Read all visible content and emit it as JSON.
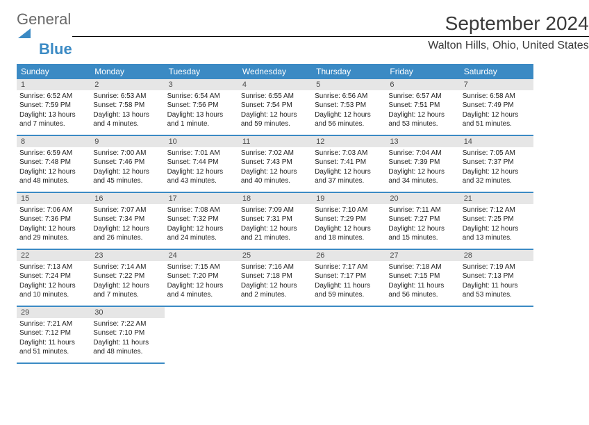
{
  "logo": {
    "general": "General",
    "blue": "Blue"
  },
  "title": "September 2024",
  "location": "Walton Hills, Ohio, United States",
  "colors": {
    "header_bg": "#3b8ac4",
    "header_fg": "#ffffff",
    "daynum_bg": "#e6e6e6",
    "body_bg": "#ffffff",
    "border": "#3b8ac4"
  },
  "weekdays": [
    "Sunday",
    "Monday",
    "Tuesday",
    "Wednesday",
    "Thursday",
    "Friday",
    "Saturday"
  ],
  "weeks": [
    [
      {
        "n": "1",
        "sr": "Sunrise: 6:52 AM",
        "ss": "Sunset: 7:59 PM",
        "dl": "Daylight: 13 hours and 7 minutes."
      },
      {
        "n": "2",
        "sr": "Sunrise: 6:53 AM",
        "ss": "Sunset: 7:58 PM",
        "dl": "Daylight: 13 hours and 4 minutes."
      },
      {
        "n": "3",
        "sr": "Sunrise: 6:54 AM",
        "ss": "Sunset: 7:56 PM",
        "dl": "Daylight: 13 hours and 1 minute."
      },
      {
        "n": "4",
        "sr": "Sunrise: 6:55 AM",
        "ss": "Sunset: 7:54 PM",
        "dl": "Daylight: 12 hours and 59 minutes."
      },
      {
        "n": "5",
        "sr": "Sunrise: 6:56 AM",
        "ss": "Sunset: 7:53 PM",
        "dl": "Daylight: 12 hours and 56 minutes."
      },
      {
        "n": "6",
        "sr": "Sunrise: 6:57 AM",
        "ss": "Sunset: 7:51 PM",
        "dl": "Daylight: 12 hours and 53 minutes."
      },
      {
        "n": "7",
        "sr": "Sunrise: 6:58 AM",
        "ss": "Sunset: 7:49 PM",
        "dl": "Daylight: 12 hours and 51 minutes."
      }
    ],
    [
      {
        "n": "8",
        "sr": "Sunrise: 6:59 AM",
        "ss": "Sunset: 7:48 PM",
        "dl": "Daylight: 12 hours and 48 minutes."
      },
      {
        "n": "9",
        "sr": "Sunrise: 7:00 AM",
        "ss": "Sunset: 7:46 PM",
        "dl": "Daylight: 12 hours and 45 minutes."
      },
      {
        "n": "10",
        "sr": "Sunrise: 7:01 AM",
        "ss": "Sunset: 7:44 PM",
        "dl": "Daylight: 12 hours and 43 minutes."
      },
      {
        "n": "11",
        "sr": "Sunrise: 7:02 AM",
        "ss": "Sunset: 7:43 PM",
        "dl": "Daylight: 12 hours and 40 minutes."
      },
      {
        "n": "12",
        "sr": "Sunrise: 7:03 AM",
        "ss": "Sunset: 7:41 PM",
        "dl": "Daylight: 12 hours and 37 minutes."
      },
      {
        "n": "13",
        "sr": "Sunrise: 7:04 AM",
        "ss": "Sunset: 7:39 PM",
        "dl": "Daylight: 12 hours and 34 minutes."
      },
      {
        "n": "14",
        "sr": "Sunrise: 7:05 AM",
        "ss": "Sunset: 7:37 PM",
        "dl": "Daylight: 12 hours and 32 minutes."
      }
    ],
    [
      {
        "n": "15",
        "sr": "Sunrise: 7:06 AM",
        "ss": "Sunset: 7:36 PM",
        "dl": "Daylight: 12 hours and 29 minutes."
      },
      {
        "n": "16",
        "sr": "Sunrise: 7:07 AM",
        "ss": "Sunset: 7:34 PM",
        "dl": "Daylight: 12 hours and 26 minutes."
      },
      {
        "n": "17",
        "sr": "Sunrise: 7:08 AM",
        "ss": "Sunset: 7:32 PM",
        "dl": "Daylight: 12 hours and 24 minutes."
      },
      {
        "n": "18",
        "sr": "Sunrise: 7:09 AM",
        "ss": "Sunset: 7:31 PM",
        "dl": "Daylight: 12 hours and 21 minutes."
      },
      {
        "n": "19",
        "sr": "Sunrise: 7:10 AM",
        "ss": "Sunset: 7:29 PM",
        "dl": "Daylight: 12 hours and 18 minutes."
      },
      {
        "n": "20",
        "sr": "Sunrise: 7:11 AM",
        "ss": "Sunset: 7:27 PM",
        "dl": "Daylight: 12 hours and 15 minutes."
      },
      {
        "n": "21",
        "sr": "Sunrise: 7:12 AM",
        "ss": "Sunset: 7:25 PM",
        "dl": "Daylight: 12 hours and 13 minutes."
      }
    ],
    [
      {
        "n": "22",
        "sr": "Sunrise: 7:13 AM",
        "ss": "Sunset: 7:24 PM",
        "dl": "Daylight: 12 hours and 10 minutes."
      },
      {
        "n": "23",
        "sr": "Sunrise: 7:14 AM",
        "ss": "Sunset: 7:22 PM",
        "dl": "Daylight: 12 hours and 7 minutes."
      },
      {
        "n": "24",
        "sr": "Sunrise: 7:15 AM",
        "ss": "Sunset: 7:20 PM",
        "dl": "Daylight: 12 hours and 4 minutes."
      },
      {
        "n": "25",
        "sr": "Sunrise: 7:16 AM",
        "ss": "Sunset: 7:18 PM",
        "dl": "Daylight: 12 hours and 2 minutes."
      },
      {
        "n": "26",
        "sr": "Sunrise: 7:17 AM",
        "ss": "Sunset: 7:17 PM",
        "dl": "Daylight: 11 hours and 59 minutes."
      },
      {
        "n": "27",
        "sr": "Sunrise: 7:18 AM",
        "ss": "Sunset: 7:15 PM",
        "dl": "Daylight: 11 hours and 56 minutes."
      },
      {
        "n": "28",
        "sr": "Sunrise: 7:19 AM",
        "ss": "Sunset: 7:13 PM",
        "dl": "Daylight: 11 hours and 53 minutes."
      }
    ],
    [
      {
        "n": "29",
        "sr": "Sunrise: 7:21 AM",
        "ss": "Sunset: 7:12 PM",
        "dl": "Daylight: 11 hours and 51 minutes."
      },
      {
        "n": "30",
        "sr": "Sunrise: 7:22 AM",
        "ss": "Sunset: 7:10 PM",
        "dl": "Daylight: 11 hours and 48 minutes."
      },
      null,
      null,
      null,
      null,
      null
    ]
  ]
}
